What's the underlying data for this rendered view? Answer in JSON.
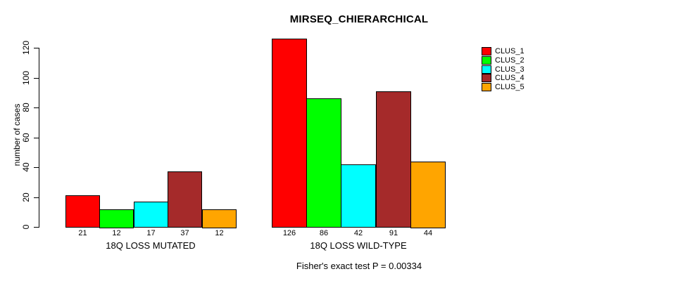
{
  "chart_data": {
    "type": "bar",
    "title": "MIRSEQ_CHIERARCHICAL",
    "ylabel": "number of cases",
    "xlabel": "",
    "ylim": [
      0,
      120
    ],
    "yticks": [
      0,
      20,
      40,
      60,
      80,
      100,
      120
    ],
    "categories": [
      "18Q LOSS MUTATED",
      "18Q LOSS WILD-TYPE"
    ],
    "series": [
      {
        "name": "CLUS_1",
        "color": "#FF0000",
        "values": [
          21,
          126
        ]
      },
      {
        "name": "CLUS_2",
        "color": "#00FF00",
        "values": [
          12,
          86
        ]
      },
      {
        "name": "CLUS_3",
        "color": "#00FFFF",
        "values": [
          17,
          42
        ]
      },
      {
        "name": "CLUS_4",
        "color": "#A52A2A",
        "values": [
          37,
          91
        ]
      },
      {
        "name": "CLUS_5",
        "color": "#FFA500",
        "values": [
          12,
          44
        ]
      }
    ],
    "bar_value_labels_shown": true,
    "annotation": "Fisher's exact test P = 0.00334",
    "legend_position": "top-right",
    "grid": false,
    "background": "#FFFFFF",
    "axis_color": "#000000",
    "text_color": "#000000"
  }
}
